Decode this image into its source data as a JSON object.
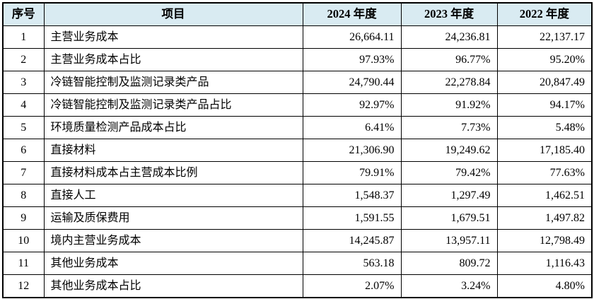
{
  "colors": {
    "header_background": "#d9ebf2",
    "border": "#000000",
    "text": "#000000",
    "page_background": "#ffffff"
  },
  "table": {
    "headers": [
      "序号",
      "项目",
      "2024 年度",
      "2023 年度",
      "2022 年度"
    ],
    "rows": [
      {
        "no": "1",
        "item": "主营业务成本",
        "y2024": "26,664.11",
        "y2023": "24,236.81",
        "y2022": "22,137.17"
      },
      {
        "no": "2",
        "item": "主营业务成本占比",
        "y2024": "97.93%",
        "y2023": "96.77%",
        "y2022": "95.20%"
      },
      {
        "no": "3",
        "item": "冷链智能控制及监测记录类产品",
        "y2024": "24,790.44",
        "y2023": "22,278.84",
        "y2022": "20,847.49"
      },
      {
        "no": "4",
        "item": "冷链智能控制及监测记录类产品占比",
        "y2024": "92.97%",
        "y2023": "91.92%",
        "y2022": "94.17%"
      },
      {
        "no": "5",
        "item": "环境质量检测产品成本占比",
        "y2024": "6.41%",
        "y2023": "7.73%",
        "y2022": "5.48%"
      },
      {
        "no": "6",
        "item": "直接材料",
        "y2024": "21,306.90",
        "y2023": "19,249.62",
        "y2022": "17,185.40"
      },
      {
        "no": "7",
        "item": "直接材料成本占主营成本比例",
        "y2024": "79.91%",
        "y2023": "79.42%",
        "y2022": "77.63%"
      },
      {
        "no": "8",
        "item": "直接人工",
        "y2024": "1,548.37",
        "y2023": "1,297.49",
        "y2022": "1,462.51"
      },
      {
        "no": "9",
        "item": "运输及质保费用",
        "y2024": "1,591.55",
        "y2023": "1,679.51",
        "y2022": "1,497.82"
      },
      {
        "no": "10",
        "item": "境内主营业务成本",
        "y2024": "14,245.87",
        "y2023": "13,957.11",
        "y2022": "12,798.49"
      },
      {
        "no": "11",
        "item": "其他业务成本",
        "y2024": "563.18",
        "y2023": "809.72",
        "y2022": "1,116.43"
      },
      {
        "no": "12",
        "item": "其他业务成本占比",
        "y2024": "2.07%",
        "y2023": "3.24%",
        "y2022": "4.80%"
      }
    ]
  }
}
